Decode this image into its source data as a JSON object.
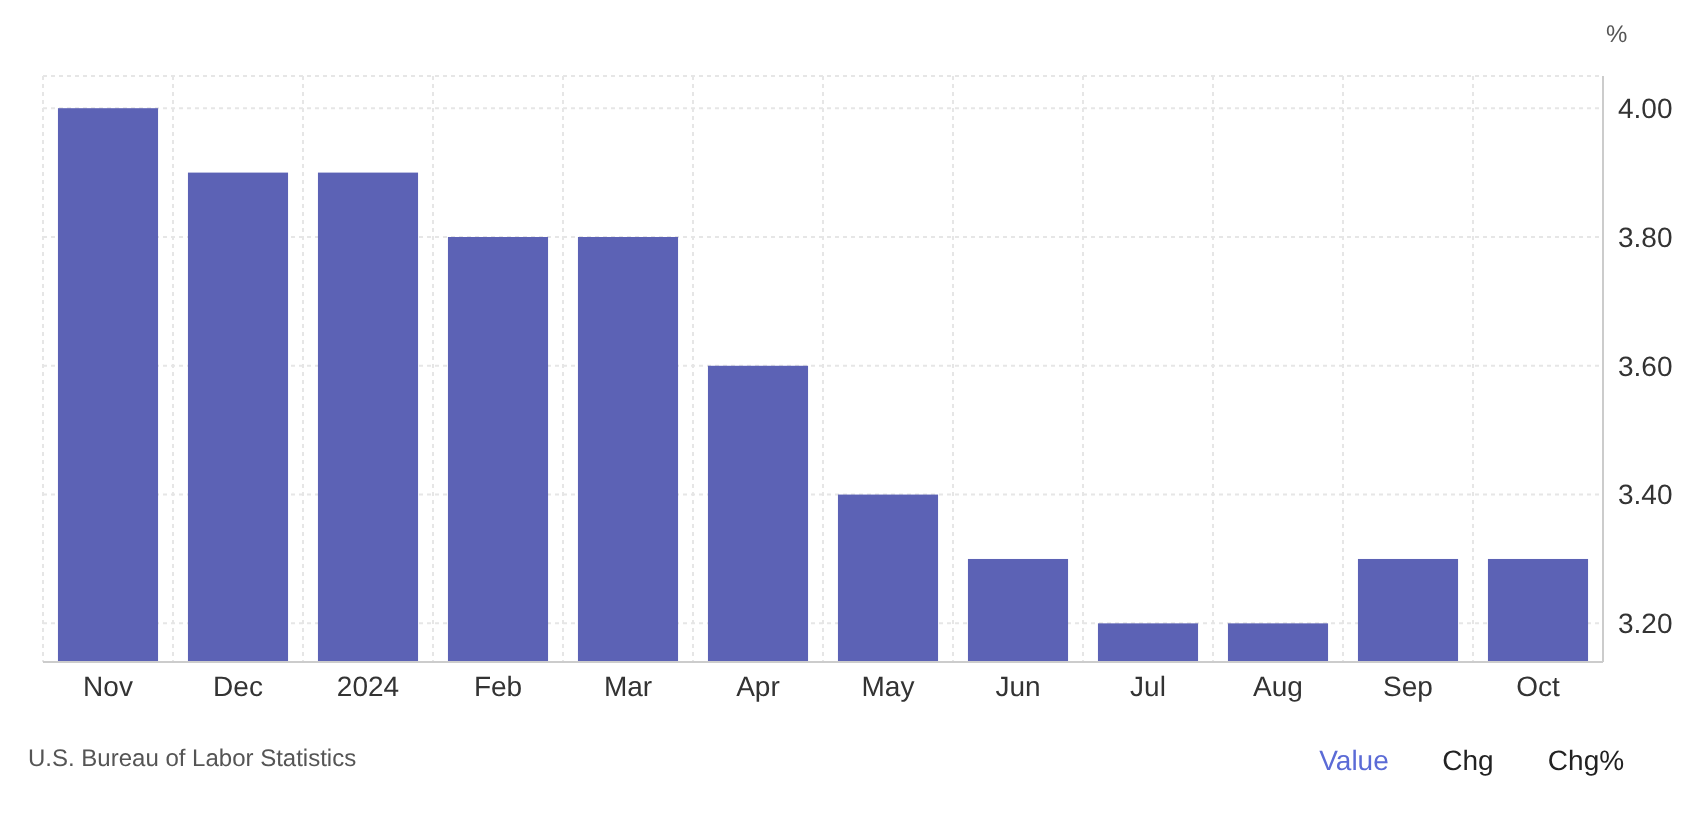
{
  "chart_data": {
    "type": "bar",
    "ylabel": "%",
    "categories": [
      "Nov",
      "Dec",
      "2024",
      "Feb",
      "Mar",
      "Apr",
      "May",
      "Jun",
      "Jul",
      "Aug",
      "Sep",
      "Oct"
    ],
    "values": [
      4.0,
      3.9,
      3.9,
      3.8,
      3.8,
      3.6,
      3.4,
      3.3,
      3.2,
      3.2,
      3.3,
      3.3
    ],
    "color": "#5c62b5",
    "ylim": [
      3.14,
      4.05
    ],
    "yticks": [
      {
        "value": 3.2,
        "label": "3.20"
      },
      {
        "value": 3.4,
        "label": "3.40"
      },
      {
        "value": 3.6,
        "label": "3.60"
      },
      {
        "value": 3.8,
        "label": "3.80"
      },
      {
        "value": 4.0,
        "label": "4.00"
      }
    ],
    "grid": true,
    "annotations": [
      "U.S. Bureau of Labor Statistics",
      "Value",
      "Chg",
      "Chg%"
    ]
  }
}
